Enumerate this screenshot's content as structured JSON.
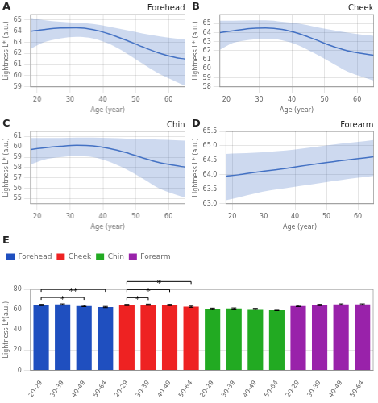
{
  "chart_data": [
    {
      "type": "line",
      "panel_label": "A",
      "title": "Forehead",
      "xlabel": "Age (year)",
      "ylabel": "Lightness L* (a.u.)",
      "x": [
        18,
        22,
        27,
        32,
        37,
        42,
        47,
        52,
        57,
        62,
        65
      ],
      "values": [
        64.0,
        64.15,
        64.28,
        64.3,
        64.15,
        63.75,
        63.2,
        62.6,
        62.05,
        61.65,
        61.5
      ],
      "ci_upper": [
        65.2,
        65.0,
        64.85,
        64.75,
        64.65,
        64.4,
        64.1,
        63.8,
        63.55,
        63.35,
        63.3
      ],
      "ci_lower": [
        62.4,
        63.0,
        63.35,
        63.5,
        63.35,
        62.85,
        62.05,
        61.1,
        60.2,
        59.5,
        59.1
      ],
      "color": "#4472C4",
      "xlim": [
        18,
        65
      ],
      "xticks": [
        20,
        30,
        40,
        50,
        60
      ],
      "ylim": [
        59,
        65.5
      ],
      "yticks": [
        59,
        60,
        61,
        62,
        63,
        64,
        65
      ],
      "grid": true
    },
    {
      "type": "line",
      "panel_label": "B",
      "title": "Cheek",
      "xlabel": "Age (year)",
      "ylabel": "Lightness L* (a.u.)",
      "x": [
        18,
        22,
        27,
        32,
        37,
        42,
        47,
        52,
        57,
        62,
        65
      ],
      "values": [
        64.0,
        64.2,
        64.45,
        64.5,
        64.35,
        63.9,
        63.25,
        62.55,
        62.0,
        61.65,
        61.5
      ],
      "ci_upper": [
        65.3,
        65.3,
        65.35,
        65.35,
        65.2,
        65.0,
        64.65,
        64.3,
        64.0,
        63.75,
        63.65
      ],
      "ci_lower": [
        62.1,
        62.85,
        63.2,
        63.3,
        63.15,
        62.6,
        61.7,
        60.7,
        59.7,
        59.05,
        58.7
      ],
      "color": "#4472C4",
      "xlim": [
        18,
        65
      ],
      "xticks": [
        20,
        30,
        40,
        50,
        60
      ],
      "ylim": [
        58,
        66
      ],
      "yticks": [
        58,
        59,
        60,
        61,
        62,
        63,
        64,
        65
      ],
      "grid": true
    },
    {
      "type": "line",
      "panel_label": "C",
      "title": "Chin",
      "xlabel": "Age (year)",
      "ylabel": "Lightness L* (a.u.)",
      "x": [
        18,
        22,
        27,
        32,
        37,
        42,
        47,
        52,
        57,
        62,
        65
      ],
      "values": [
        59.75,
        59.9,
        60.05,
        60.15,
        60.1,
        59.85,
        59.45,
        58.95,
        58.5,
        58.2,
        58.05
      ],
      "ci_upper": [
        60.85,
        60.85,
        60.85,
        60.9,
        60.9,
        60.85,
        60.8,
        60.75,
        60.7,
        60.65,
        60.6
      ],
      "ci_lower": [
        58.3,
        58.75,
        59.0,
        59.1,
        59.0,
        58.55,
        57.85,
        56.95,
        56.0,
        55.4,
        55.1
      ],
      "color": "#4472C4",
      "xlim": [
        18,
        65
      ],
      "xticks": [
        20,
        30,
        40,
        50,
        60
      ],
      "ylim": [
        54.5,
        61.5
      ],
      "yticks": [
        55,
        56,
        57,
        58,
        59,
        60,
        61
      ],
      "grid": true
    },
    {
      "type": "line",
      "panel_label": "D",
      "title": "Forearm",
      "xlabel": "Age (year)",
      "ylabel": "Lightness L* (a.u.)",
      "x": [
        18,
        22,
        27,
        32,
        37,
        42,
        47,
        52,
        57,
        62,
        65
      ],
      "values": [
        63.95,
        64.0,
        64.08,
        64.15,
        64.22,
        64.3,
        64.38,
        64.45,
        64.52,
        64.58,
        64.62
      ],
      "ci_upper": [
        64.72,
        64.74,
        64.76,
        64.8,
        64.84,
        64.9,
        64.97,
        65.04,
        65.1,
        65.16,
        65.2
      ],
      "ci_lower": [
        63.12,
        63.22,
        63.35,
        63.46,
        63.54,
        63.62,
        63.7,
        63.78,
        63.86,
        63.92,
        63.96
      ],
      "color": "#4472C4",
      "xlim": [
        18,
        65
      ],
      "xticks": [
        20,
        30,
        40,
        50,
        60
      ],
      "ylim": [
        63,
        65.5
      ],
      "yticks": [
        {
          "value": 63,
          "label": "63.0"
        },
        63.5,
        {
          "value": 64,
          "label": "64.0"
        },
        64.5,
        {
          "value": 65,
          "label": "65.0"
        },
        65.5
      ],
      "grid": true
    },
    {
      "type": "bar",
      "panel_label": "E",
      "ylabel": "Lightness L*(a.u.)",
      "categories": [
        "20-29",
        "30-39",
        "40-49",
        "50-64",
        "20-29",
        "30-39",
        "40-49",
        "50-64",
        "20-29",
        "30-39",
        "40-49",
        "50-64",
        "20-29",
        "30-39",
        "40-49",
        "50-64"
      ],
      "series": [
        {
          "name": "Forehead",
          "color": "#1F4FBF",
          "values": [
            64.5,
            65.0,
            63.5,
            62.5,
            null,
            null,
            null,
            null,
            null,
            null,
            null,
            null,
            null,
            null,
            null,
            null
          ],
          "errors": [
            0.6,
            0.6,
            0.6,
            0.6,
            null,
            null,
            null,
            null,
            null,
            null,
            null,
            null,
            null,
            null,
            null,
            null
          ]
        },
        {
          "name": "Cheek",
          "color": "#EE2222",
          "values": [
            null,
            null,
            null,
            null,
            64.5,
            64.8,
            64.5,
            62.8,
            null,
            null,
            null,
            null,
            null,
            null,
            null,
            null
          ],
          "errors": [
            null,
            null,
            null,
            null,
            0.6,
            0.6,
            0.6,
            0.6,
            null,
            null,
            null,
            null,
            null,
            null,
            null,
            null
          ]
        },
        {
          "name": "Chin",
          "color": "#22AA22",
          "values": [
            null,
            null,
            null,
            null,
            null,
            null,
            null,
            null,
            60.8,
            61.0,
            60.5,
            59.5,
            null,
            null,
            null,
            null
          ],
          "errors": [
            null,
            null,
            null,
            null,
            null,
            null,
            null,
            null,
            0.6,
            0.6,
            0.6,
            0.6,
            null,
            null,
            null,
            null
          ]
        },
        {
          "name": "Forearm",
          "color": "#9922AA",
          "values": [
            null,
            null,
            null,
            null,
            null,
            null,
            null,
            null,
            null,
            null,
            null,
            null,
            63.5,
            64.5,
            65.0,
            65.0
          ],
          "errors": [
            null,
            null,
            null,
            null,
            null,
            null,
            null,
            null,
            null,
            null,
            null,
            null,
            0.6,
            0.6,
            0.6,
            0.6
          ]
        }
      ],
      "ylim": [
        0,
        80
      ],
      "yticks": [
        0,
        20,
        40,
        60,
        80
      ],
      "grid": "y",
      "legend": "upper left",
      "annotations": [
        {
          "text": "*",
          "start": 0,
          "end": 2
        },
        {
          "text": "**",
          "start": 0,
          "end": 3
        },
        {
          "text": "*",
          "start": 4,
          "end": 5
        },
        {
          "text": "*",
          "start": 4,
          "end": 6
        },
        {
          "text": "*",
          "start": 4,
          "end": 7
        }
      ]
    }
  ]
}
